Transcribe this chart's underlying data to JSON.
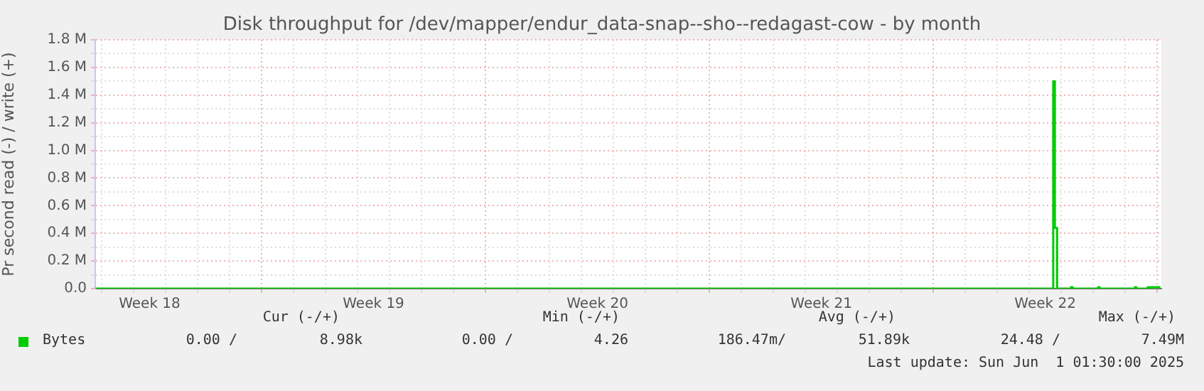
{
  "chart_data": {
    "type": "step",
    "title": "Disk throughput for /dev/mapper/endur_data-snap--sho--redagast-cow - by month",
    "ylabel": "Pr second read (-) / write (+)",
    "xlim": [
      "2025-04-29T19:12",
      "2025-06-02T03:07"
    ],
    "xticks": [
      {
        "value": "2025-04-30",
        "label": null
      },
      {
        "value": "2025-05-01",
        "label": null
      },
      {
        "value": "2025-05-01T12:00",
        "label": "Week 18"
      },
      {
        "value": "2025-05-02",
        "label": null
      },
      {
        "value": "2025-05-03",
        "label": null
      },
      {
        "value": "2025-05-04",
        "label": null
      },
      {
        "value": "2025-05-05",
        "label": null
      },
      {
        "value": "2025-05-06",
        "label": null
      },
      {
        "value": "2025-05-07",
        "label": null
      },
      {
        "value": "2025-05-08",
        "label": null
      },
      {
        "value": "2025-05-08T12:00",
        "label": "Week 19"
      },
      {
        "value": "2025-05-09",
        "label": null
      },
      {
        "value": "2025-05-10",
        "label": null
      },
      {
        "value": "2025-05-11",
        "label": null
      },
      {
        "value": "2025-05-12",
        "label": null
      },
      {
        "value": "2025-05-13",
        "label": null
      },
      {
        "value": "2025-05-14",
        "label": null
      },
      {
        "value": "2025-05-15",
        "label": null
      },
      {
        "value": "2025-05-15T12:00",
        "label": "Week 20"
      },
      {
        "value": "2025-05-16",
        "label": null
      },
      {
        "value": "2025-05-17",
        "label": null
      },
      {
        "value": "2025-05-18",
        "label": null
      },
      {
        "value": "2025-05-19",
        "label": null
      },
      {
        "value": "2025-05-20",
        "label": null
      },
      {
        "value": "2025-05-21",
        "label": null
      },
      {
        "value": "2025-05-22",
        "label": null
      },
      {
        "value": "2025-05-22T12:00",
        "label": "Week 21"
      },
      {
        "value": "2025-05-23",
        "label": null
      },
      {
        "value": "2025-05-24",
        "label": null
      },
      {
        "value": "2025-05-25",
        "label": null
      },
      {
        "value": "2025-05-26",
        "label": null
      },
      {
        "value": "2025-05-27",
        "label": null
      },
      {
        "value": "2025-05-28",
        "label": null
      },
      {
        "value": "2025-05-29",
        "label": null
      },
      {
        "value": "2025-05-29T12:00",
        "label": "Week 22"
      },
      {
        "value": "2025-05-30",
        "label": null
      },
      {
        "value": "2025-05-31",
        "label": null
      },
      {
        "value": "2025-06-01",
        "label": null
      },
      {
        "value": "2025-06-02",
        "label": null
      }
    ],
    "ylim": [
      0,
      1800000
    ],
    "yticks": [
      {
        "value": 0,
        "label": "0.0"
      },
      {
        "value": 100000,
        "label": null
      },
      {
        "value": 200000,
        "label": "0.2 M"
      },
      {
        "value": 300000,
        "label": null
      },
      {
        "value": 400000,
        "label": "0.4 M"
      },
      {
        "value": 500000,
        "label": null
      },
      {
        "value": 600000,
        "label": "0.6 M"
      },
      {
        "value": 700000,
        "label": null
      },
      {
        "value": 800000,
        "label": "0.8 M"
      },
      {
        "value": 900000,
        "label": null
      },
      {
        "value": 1000000,
        "label": "1.0 M"
      },
      {
        "value": 1100000,
        "label": null
      },
      {
        "value": 1200000,
        "label": "1.2 M"
      },
      {
        "value": 1300000,
        "label": null
      },
      {
        "value": 1400000,
        "label": "1.4 M"
      },
      {
        "value": 1500000,
        "label": null
      },
      {
        "value": 1600000,
        "label": "1.6 M"
      },
      {
        "value": 1700000,
        "label": null
      },
      {
        "value": 1800000,
        "label": "1.8 M"
      }
    ],
    "grid": true,
    "legend": "bottom left",
    "marker": "none",
    "line_style": "solid",
    "series": [
      {
        "name": "Bytes",
        "color": "#00cc00",
        "x": [
          "2025-04-29T19:12",
          "2025-05-29T18:00",
          "2025-05-29T19:12",
          "2025-05-29T20:53",
          "2025-05-29T22:19",
          "2025-05-30T07:12",
          "2025-05-30T08:38",
          "2025-05-30T09:36",
          "2025-05-31T03:36",
          "2025-05-31T04:48",
          "2025-05-31T06:00",
          "2025-06-01T07:12",
          "2025-06-01T08:24",
          "2025-06-01T09:36",
          "2025-06-01T16:48",
          "2025-06-01T18:00",
          "2025-06-01T19:12",
          "2025-06-01T21:36",
          "2025-06-02T02:24"
        ],
        "values": [
          0,
          0,
          1500000,
          440000,
          0,
          0,
          10000,
          0,
          0,
          10000,
          0,
          0,
          10000,
          0,
          0,
          10000,
          0,
          10000,
          10000
        ]
      }
    ],
    "annotations": [
      "Cur (-/+)",
      "Min (-/+)",
      "Avg (-/+)",
      "Max (-/+)",
      "0.00 /",
      "8.98k",
      "0.00 /",
      "4.26",
      "186.47m/",
      "51.89k",
      "24.48 /",
      "7.49M",
      "Last update: Sun Jun  1 01:30:00 2025"
    ]
  }
}
